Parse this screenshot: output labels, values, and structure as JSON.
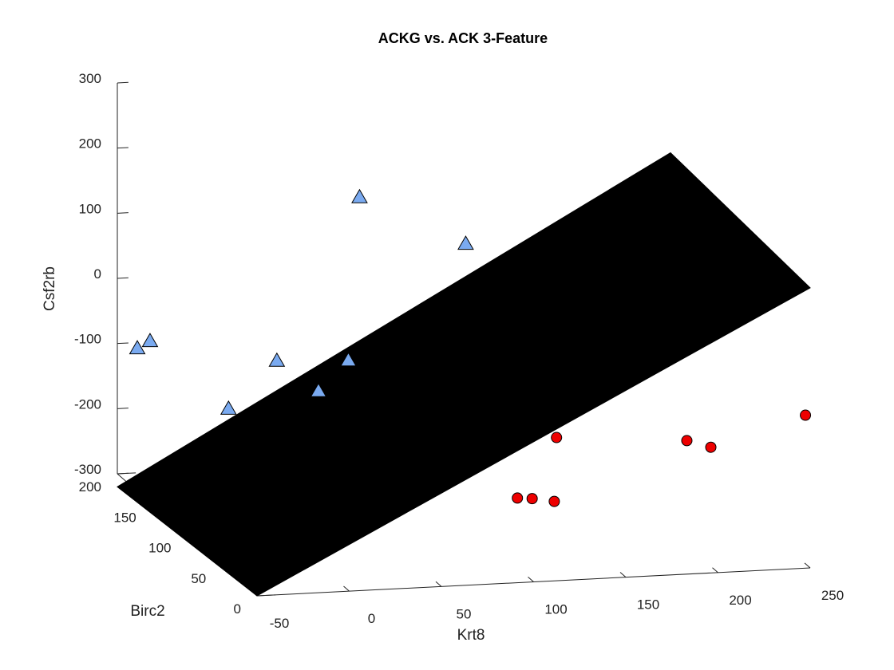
{
  "chart_data": {
    "type": "scatter",
    "title": "ACKG vs. ACK 3-Feature",
    "xlabel": "Krt8",
    "ylabel": "Birc2",
    "zlabel": "Csf2rb",
    "xlim": [
      -50,
      250
    ],
    "ylim": [
      0,
      200
    ],
    "zlim": [
      -300,
      300
    ],
    "x_ticks": [
      "-50",
      "0",
      "50",
      "100",
      "150",
      "200",
      "250"
    ],
    "y_ticks": [
      "0",
      "50",
      "100",
      "150",
      "200"
    ],
    "z_ticks": [
      "-300",
      "-200",
      "-100",
      "0",
      "100",
      "200",
      "300"
    ],
    "grid": false,
    "series": [
      {
        "marker": "triangle",
        "color": "#7aaaf0",
        "points": [
          {
            "x": 70,
            "y": 170,
            "z": 135
          },
          {
            "x": 120,
            "y": 150,
            "z": 75
          },
          {
            "x": -55,
            "y": 140,
            "z": -40
          },
          {
            "x": -60,
            "y": 145,
            "z": -55
          },
          {
            "x": 10,
            "y": 130,
            "z": -70
          },
          {
            "x": 45,
            "y": 120,
            "z": -65
          },
          {
            "x": 25,
            "y": 110,
            "z": -100
          },
          {
            "x": -20,
            "y": 120,
            "z": -130
          }
        ]
      },
      {
        "marker": "circle",
        "color": "#ee0000",
        "points": [
          {
            "x": 120,
            "y": 20,
            "z": -100
          },
          {
            "x": 185,
            "y": 5,
            "z": -100
          },
          {
            "x": 198,
            "y": 5,
            "z": -112
          },
          {
            "x": 255,
            "y": 20,
            "z": -85
          },
          {
            "x": 95,
            "y": 10,
            "z": -180
          },
          {
            "x": 103,
            "y": 10,
            "z": -182
          },
          {
            "x": 115,
            "y": 10,
            "z": -188
          }
        ]
      }
    ],
    "surface": {
      "color": "#000000",
      "corners": [
        {
          "x": -50,
          "y": 200,
          "z": -320
        },
        {
          "x": -50,
          "y": 0,
          "z": -300
        },
        {
          "x": 250,
          "y": 0,
          "z": 130
        },
        {
          "x": 250,
          "y": 200,
          "z": 150
        }
      ]
    }
  }
}
